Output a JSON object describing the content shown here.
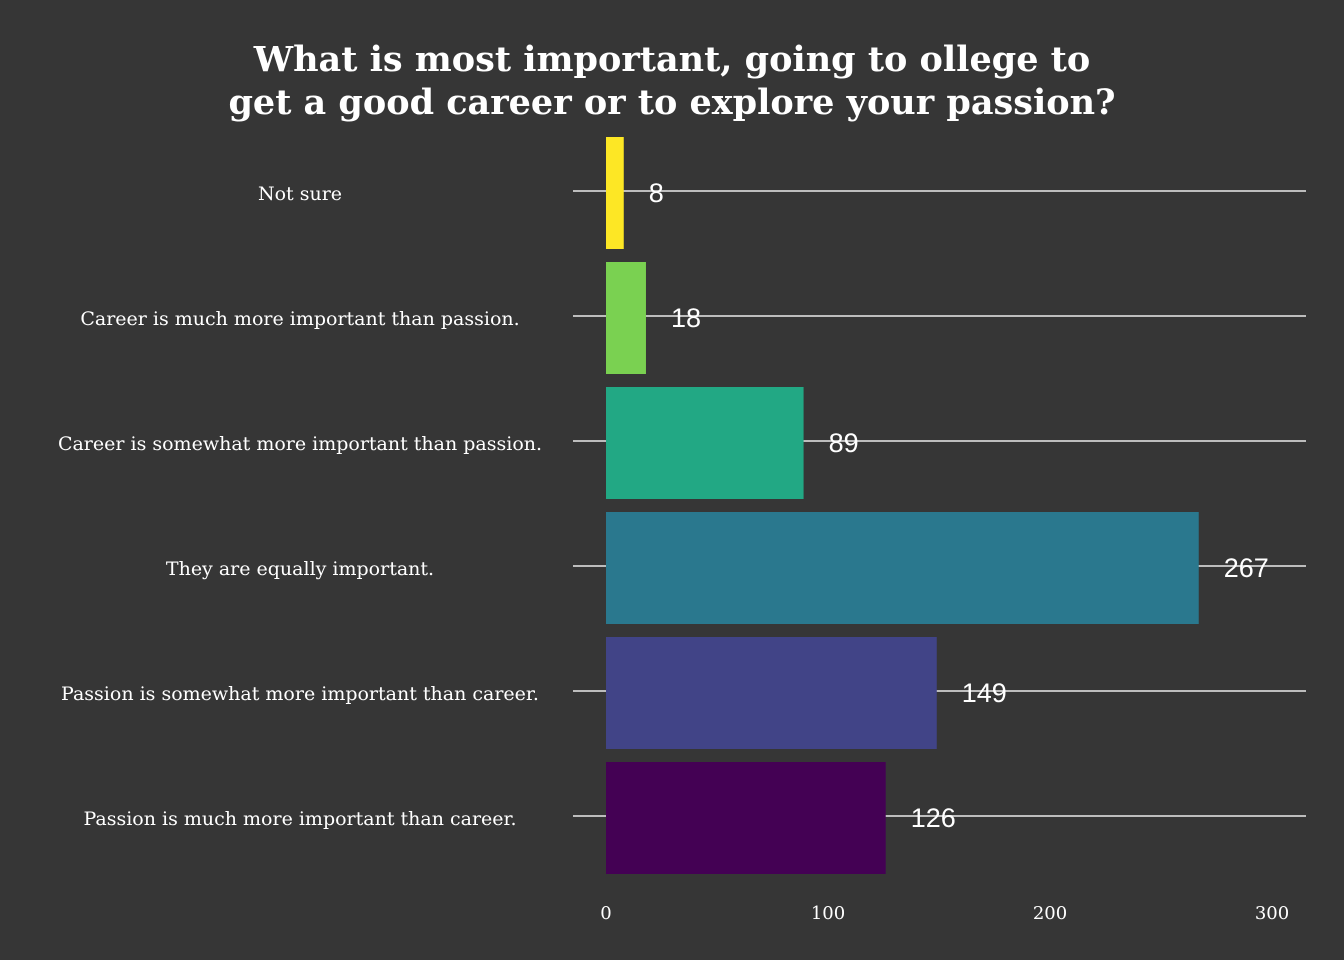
{
  "chart_data": {
    "type": "bar",
    "orientation": "horizontal",
    "title": "What is most important, going to ollege to get a good career or to explore your passion?",
    "title_lines": [
      "What is most important, going to ollege to",
      "get a good career or to explore your passion?"
    ],
    "xlabel": "",
    "ylabel": "",
    "categories": [
      "Not sure",
      "Career is much more important than passion.",
      "Career is somewhat more important than passion.",
      "They are equally important.",
      "Passion is somewhat more important than career.",
      "Passion is much more important than career."
    ],
    "values": [
      8,
      18,
      89,
      267,
      149,
      126
    ],
    "colors": [
      "#fde725",
      "#7ad151",
      "#22a884",
      "#2a788e",
      "#414487",
      "#440154"
    ],
    "xlim": [
      0,
      300
    ],
    "xticks": [
      0,
      100,
      200,
      300
    ],
    "xtick_labels": [
      "0",
      "100",
      "200",
      "300"
    ],
    "grid": "horizontal major lines at each category",
    "legend": "none",
    "background": "#363636",
    "data_labels": true
  }
}
